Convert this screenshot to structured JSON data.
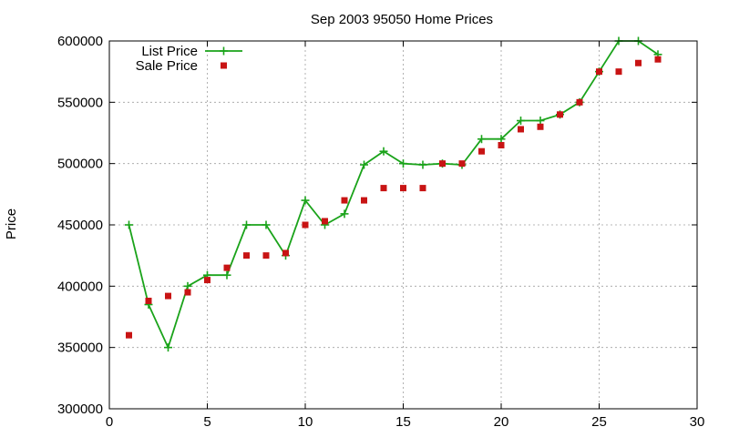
{
  "chart_data": {
    "type": "line",
    "title": "Sep 2003 95050 Home Prices",
    "xlabel": "",
    "ylabel": "Price",
    "xlim": [
      0,
      30
    ],
    "ylim": [
      300000,
      600000
    ],
    "x_ticks": [
      0,
      5,
      10,
      15,
      20,
      25,
      30
    ],
    "y_ticks": [
      300000,
      350000,
      400000,
      450000,
      500000,
      550000,
      600000
    ],
    "grid": true,
    "legend_position": "top-left",
    "series": [
      {
        "name": "List Price",
        "style": "line-with-plus-markers",
        "color": "#1aa31a",
        "x": [
          1,
          2,
          3,
          4,
          5,
          6,
          7,
          8,
          9,
          10,
          11,
          12,
          13,
          14,
          15,
          16,
          17,
          18,
          19,
          20,
          21,
          22,
          23,
          24,
          25,
          26,
          27,
          28
        ],
        "values": [
          450000,
          385000,
          350000,
          400000,
          409000,
          409000,
          450000,
          450000,
          425000,
          470000,
          450000,
          459000,
          499000,
          510000,
          500000,
          499000,
          500000,
          499000,
          520000,
          520000,
          535000,
          535000,
          540000,
          550000,
          575000,
          600000,
          600000,
          589000
        ]
      },
      {
        "name": "Sale Price",
        "style": "square-markers",
        "color": "#c81414",
        "x": [
          1,
          2,
          3,
          4,
          5,
          6,
          7,
          8,
          9,
          10,
          11,
          12,
          13,
          14,
          15,
          16,
          17,
          18,
          19,
          20,
          21,
          22,
          23,
          24,
          25,
          26,
          27,
          28
        ],
        "values": [
          360000,
          388000,
          392000,
          395000,
          405000,
          415000,
          425000,
          425000,
          427000,
          450000,
          453000,
          470000,
          470000,
          480000,
          480000,
          480000,
          500000,
          500000,
          510000,
          515000,
          528000,
          530000,
          540000,
          550000,
          575000,
          575000,
          582000,
          585000
        ]
      }
    ]
  }
}
